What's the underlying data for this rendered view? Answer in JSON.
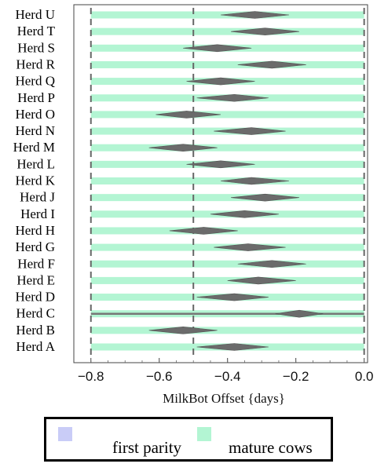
{
  "chart_data": {
    "type": "range-dot",
    "xlabel": "MilkBot Offset {days}",
    "xlim": [
      -0.85,
      0.01
    ],
    "xticks": [
      -0.8,
      -0.6,
      -0.4,
      -0.2,
      0.0
    ],
    "xtick_labels": [
      "−0.8",
      "−0.6",
      "−0.4",
      "−0.2",
      "0.0"
    ],
    "reference_lines": [
      -0.8,
      -0.5,
      0.0
    ],
    "categories": [
      "Herd U",
      "Herd T",
      "Herd S",
      "Herd R",
      "Herd Q",
      "Herd P",
      "Herd O",
      "Herd N",
      "Herd M",
      "Herd L",
      "Herd K",
      "Herd J",
      "Herd I",
      "Herd H",
      "Herd G",
      "Herd F",
      "Herd E",
      "Herd D",
      "Herd C",
      "Herd B",
      "Herd A"
    ],
    "series": [
      {
        "name": "mature cows",
        "color": "#b3f5d3",
        "ranges": [
          [
            -0.8,
            0.0
          ],
          [
            -0.8,
            0.0
          ],
          [
            -0.8,
            0.0
          ],
          [
            -0.8,
            0.0
          ],
          [
            -0.8,
            0.0
          ],
          [
            -0.8,
            0.0
          ],
          [
            -0.8,
            0.0
          ],
          [
            -0.8,
            0.0
          ],
          [
            -0.8,
            0.0
          ],
          [
            -0.8,
            0.0
          ],
          [
            -0.8,
            0.0
          ],
          [
            -0.8,
            0.0
          ],
          [
            -0.8,
            0.0
          ],
          [
            -0.8,
            0.0
          ],
          [
            -0.8,
            0.0
          ],
          [
            -0.8,
            0.0
          ],
          [
            -0.8,
            0.0
          ],
          [
            -0.8,
            0.0
          ],
          [
            -0.8,
            0.0
          ],
          [
            -0.8,
            0.0
          ],
          [
            -0.8,
            0.0
          ]
        ],
        "estimates": [
          {
            "low": -0.42,
            "mid": -0.32,
            "high": -0.22
          },
          {
            "low": -0.39,
            "mid": -0.29,
            "high": -0.19
          },
          {
            "low": -0.53,
            "mid": -0.43,
            "high": -0.33
          },
          {
            "low": -0.37,
            "mid": -0.27,
            "high": -0.17
          },
          {
            "low": -0.52,
            "mid": -0.42,
            "high": -0.32
          },
          {
            "low": -0.49,
            "mid": -0.38,
            "high": -0.28
          },
          {
            "low": -0.61,
            "mid": -0.52,
            "high": -0.42
          },
          {
            "low": -0.44,
            "mid": -0.33,
            "high": -0.23
          },
          {
            "low": -0.63,
            "mid": -0.53,
            "high": -0.43
          },
          {
            "low": -0.52,
            "mid": -0.42,
            "high": -0.32
          },
          {
            "low": -0.42,
            "mid": -0.33,
            "high": -0.22
          },
          {
            "low": -0.39,
            "mid": -0.29,
            "high": -0.19
          },
          {
            "low": -0.45,
            "mid": -0.35,
            "high": -0.25
          },
          {
            "low": -0.57,
            "mid": -0.47,
            "high": -0.37
          },
          {
            "low": -0.44,
            "mid": -0.34,
            "high": -0.23
          },
          {
            "low": -0.37,
            "mid": -0.27,
            "high": -0.17
          },
          {
            "low": -0.4,
            "mid": -0.31,
            "high": -0.2
          },
          {
            "low": -0.49,
            "mid": -0.38,
            "high": -0.28
          },
          {
            "low": -0.26,
            "mid": -0.19,
            "high": -0.12
          },
          {
            "low": -0.63,
            "mid": -0.53,
            "high": -0.43
          },
          {
            "low": -0.49,
            "mid": -0.38,
            "high": -0.28
          }
        ]
      }
    ],
    "herd_c_full_line": true,
    "legend": [
      {
        "label": "first parity",
        "color": "#c9ccf7"
      },
      {
        "label": "mature cows",
        "color": "#b3f5d3"
      }
    ],
    "legend_placement": "bottom"
  }
}
